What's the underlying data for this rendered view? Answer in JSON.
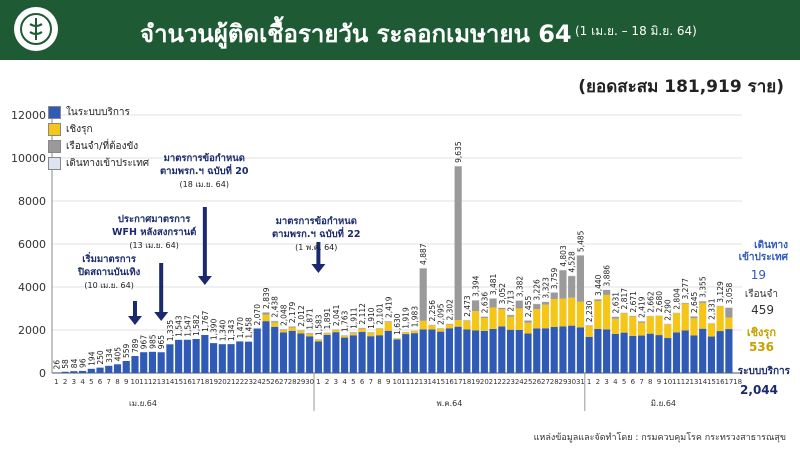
{
  "header": {
    "title": "จำนวนผู้ติดเชื้อรายวัน ระลอกเมษายน 64",
    "range": "(1 เม.ย. – 18 มิ.ย. 64)"
  },
  "cumulative_label": "(ยอดสะสม 181,919 ราย)",
  "legend": [
    {
      "label": "ในระบบบริการ",
      "color": "#2f5bb7"
    },
    {
      "label": "เชิงรุก",
      "color": "#f5c518"
    },
    {
      "label": "เรือนจำ/ที่ต้องขัง",
      "color": "#9a9a9a"
    },
    {
      "label": "เดินทางเข้าประเทศ",
      "color": "#dde3ef"
    }
  ],
  "annotations": [
    {
      "title": "เริ่มมาตรการ\nปิดสถานบันเทิง",
      "date": "(10 เม.ย. 64)"
    },
    {
      "title": "ประกาศมาตรการ\nWFH หลังสงกรานต์",
      "date": "(13 เม.ย. 64)"
    },
    {
      "title": "มาตรการข้อกำหนด\nตามพรก.ฯ ฉบับที่ 20",
      "date": "(18 เม.ย. 64)"
    },
    {
      "title": "มาตรการข้อกำหนด\nตามพรก.ฯ ฉบับที่ 22",
      "date": "(1 พ.ค. 64)"
    }
  ],
  "side_summary": {
    "import_label": "เดินทาง\nเข้าประเทศ",
    "import_value": "19",
    "prison_label": "เรือนจำ",
    "prison_value": "459",
    "active_label": "เชิงรุก",
    "active_value": "536",
    "service_label": "ระบบบริการ",
    "service_value": "2,044"
  },
  "source": "แหล่งข้อมูลและจัดทำโดย : กรมควบคุมโรค กระทรวงสาธารณสุข",
  "chart_data": {
    "type": "bar",
    "stacked": true,
    "ylim": [
      0,
      12000
    ],
    "yticks": [
      0,
      2000,
      4000,
      6000,
      8000,
      10000,
      12000
    ],
    "month_labels": [
      "เม.ย.64",
      "พ.ค.64",
      "มิ.ย.64"
    ],
    "day_labels": [
      "1",
      "2",
      "3",
      "4",
      "5",
      "6",
      "7",
      "8",
      "9",
      "10",
      "11",
      "12",
      "13",
      "14",
      "15",
      "16",
      "17",
      "18",
      "19",
      "20",
      "21",
      "22",
      "23",
      "24",
      "25",
      "26",
      "27",
      "28",
      "29",
      "30",
      "1",
      "2",
      "3",
      "4",
      "5",
      "6",
      "7",
      "8",
      "9",
      "10",
      "11",
      "12",
      "13",
      "14",
      "15",
      "16",
      "17",
      "18",
      "19",
      "20",
      "21",
      "22",
      "23",
      "24",
      "25",
      "26",
      "27",
      "28",
      "29",
      "30",
      "31",
      "1",
      "2",
      "3",
      "4",
      "5",
      "6",
      "7",
      "8",
      "9",
      "10",
      "11",
      "12",
      "13",
      "14",
      "15",
      "16",
      "17",
      "18"
    ],
    "totals": [
      "26",
      "58",
      "84",
      "96",
      "194",
      "250",
      "334",
      "405",
      "559",
      "789",
      "967",
      "985",
      "965",
      "1,335",
      "1,543",
      "1,547",
      "1,582",
      "1,767",
      "1,390",
      "1,340",
      "1,343",
      "1,470",
      "1,458",
      "2,070",
      "2,839",
      "2,438",
      "2,048",
      "2,179",
      "2,012",
      "1,871",
      "1,583",
      "1,891",
      "2,041",
      "1,763",
      "1,911",
      "2,112",
      "1,910",
      "2,101",
      "2,419",
      "1,630",
      "1,919",
      "1,983",
      "4,887",
      "2,256",
      "2,095",
      "2,302",
      "9,635",
      "2,473",
      "3,394",
      "2,636",
      "3,481",
      "3,052",
      "2,713",
      "3,382",
      "2,455",
      "3,226",
      "3,323",
      "3,759",
      "4,803",
      "4,528",
      "5,485",
      "2,230",
      "3,440",
      "3,886",
      "2,631",
      "2,817",
      "2,671",
      "2,419",
      "2,662",
      "2,680",
      "2,290",
      "2,804",
      "3,277",
      "2,645",
      "3,355",
      "2,331",
      "3,129",
      "3,058"
    ],
    "series": [
      {
        "name": "ในระบบบริการ",
        "values": [
          26,
          58,
          84,
          96,
          194,
          250,
          334,
          405,
          559,
          789,
          967,
          985,
          965,
          1335,
          1543,
          1547,
          1582,
          1767,
          1390,
          1340,
          1343,
          1470,
          1458,
          2070,
          2412,
          2151,
          1889,
          1964,
          1842,
          1707,
          1467,
          1775,
          1901,
          1647,
          1755,
          1906,
          1713,
          1758,
          1966,
          1561,
          1810,
          1854,
          2026,
          2022,
          1925,
          2081,
          2155,
          2026,
          1978,
          1959,
          2048,
          2162,
          2013,
          2003,
          1836,
          2072,
          2081,
          2144,
          2163,
          2203,
          2116,
          1685,
          2049,
          2032,
          1822,
          1878,
          1728,
          1742,
          1831,
          1764,
          1626,
          1890,
          1979,
          1746,
          2060,
          1696,
          1951,
          2044
        ]
      },
      {
        "name": "เชิงรุก",
        "values": [
          0,
          0,
          0,
          0,
          0,
          0,
          0,
          0,
          0,
          0,
          0,
          0,
          0,
          0,
          0,
          0,
          0,
          0,
          0,
          0,
          0,
          0,
          0,
          0,
          300,
          200,
          100,
          150,
          120,
          100,
          80,
          80,
          100,
          80,
          100,
          150,
          150,
          300,
          400,
          50,
          80,
          100,
          400,
          200,
          150,
          200,
          300,
          400,
          900,
          600,
          1000,
          800,
          600,
          1000,
          500,
          900,
          1100,
          1300,
          1300,
          1300,
          1200,
          500,
          1300,
          1600,
          700,
          900,
          900,
          600,
          800,
          900,
          650,
          900,
          1250,
          800,
          1200,
          600,
          1150,
          536
        ]
      },
      {
        "name": "เรือนจำ/ที่ต้องขัง",
        "values": [
          0,
          0,
          0,
          0,
          0,
          0,
          0,
          0,
          0,
          0,
          0,
          0,
          0,
          0,
          0,
          0,
          0,
          0,
          0,
          0,
          0,
          0,
          0,
          0,
          100,
          60,
          40,
          50,
          30,
          50,
          20,
          20,
          20,
          20,
          40,
          40,
          30,
          30,
          40,
          10,
          20,
          20,
          2440,
          20,
          10,
          10,
          7170,
          30,
          500,
          70,
          420,
          70,
          90,
          370,
          110,
          240,
          130,
          300,
          1320,
          1010,
          2150,
          30,
          80,
          240,
          100,
          30,
          30,
          70,
          20,
          10,
          10,
          10,
          30,
          90,
          80,
          30,
          20,
          459
        ]
      },
      {
        "name": "เดินทางเข้าประเทศ",
        "values": [
          0,
          0,
          0,
          0,
          0,
          0,
          0,
          0,
          0,
          0,
          0,
          0,
          0,
          0,
          0,
          0,
          0,
          0,
          0,
          0,
          0,
          0,
          0,
          0,
          27,
          27,
          19,
          15,
          20,
          14,
          16,
          16,
          20,
          16,
          16,
          16,
          17,
          13,
          13,
          9,
          9,
          9,
          21,
          14,
          10,
          11,
          10,
          17,
          16,
          7,
          13,
          20,
          10,
          9,
          9,
          14,
          12,
          15,
          20,
          15,
          19,
          15,
          11,
          14,
          9,
          9,
          13,
          7,
          11,
          6,
          4,
          4,
          18,
          9,
          15,
          5,
          8,
          19
        ]
      }
    ]
  }
}
